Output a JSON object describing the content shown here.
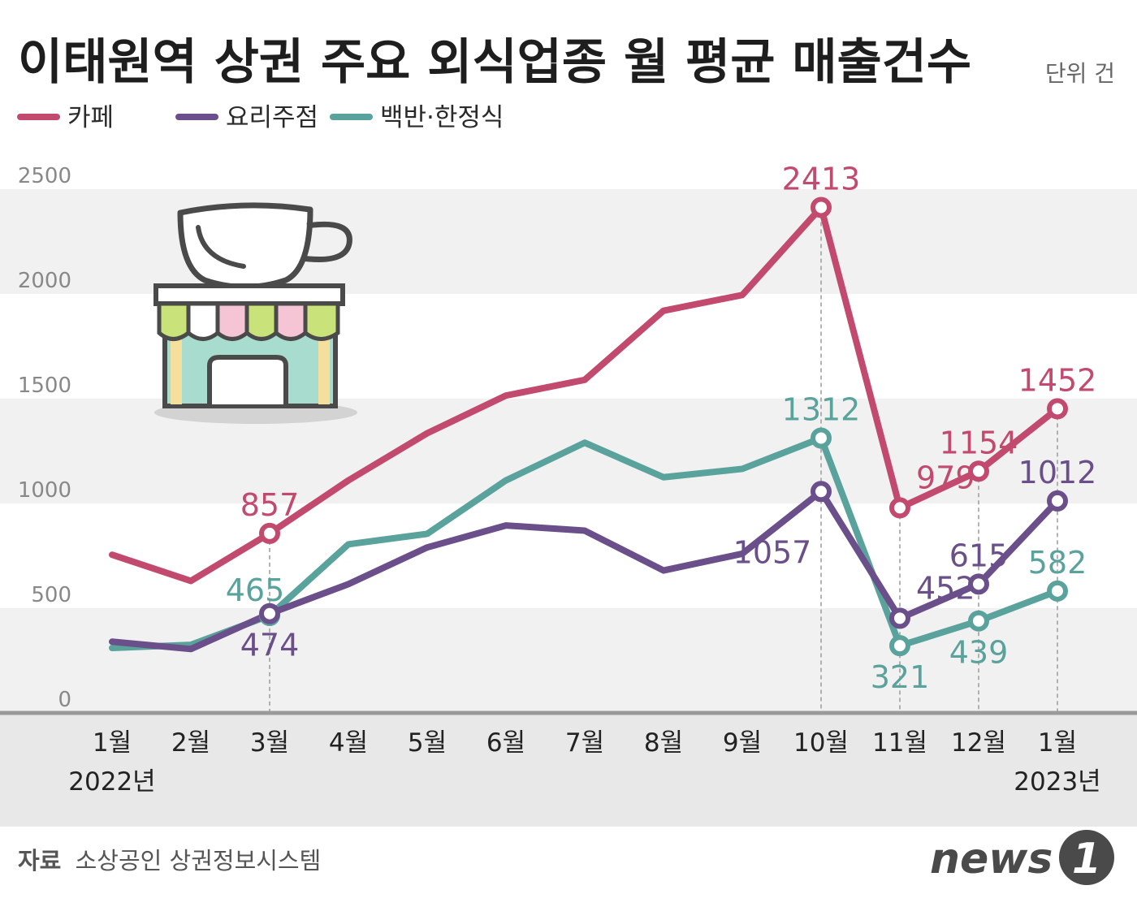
{
  "header": {
    "title": "이태원역 상권 주요 외식업종 월 평균 매출건수",
    "unit": "단위 건"
  },
  "colors": {
    "cafe": "#c24a6e",
    "restaurant": "#6a4f8a",
    "korean": "#5aa29c",
    "band": "#f1f1f1",
    "axis_band": "#e8e8e8"
  },
  "chart_data": {
    "type": "line",
    "title": "이태원역 상권 주요 외식업종 월 평균 매출건수",
    "unit": "단위 건",
    "categories": [
      "1월",
      "2월",
      "3월",
      "4월",
      "5월",
      "6월",
      "7월",
      "8월",
      "9월",
      "10월",
      "11월",
      "12월",
      "1월"
    ],
    "year_labels": [
      {
        "index": 0,
        "text": "2022년"
      },
      {
        "index": 12,
        "text": "2023년"
      }
    ],
    "yticks": [
      "0",
      "500",
      "1000",
      "1500",
      "2000",
      "2500"
    ],
    "ylim": [
      0,
      2500
    ],
    "legend": "top-left",
    "series": [
      {
        "name": "카페",
        "key": "cafe",
        "values": [
          755,
          630,
          857,
          1110,
          1335,
          1515,
          1590,
          1920,
          1995,
          2413,
          979,
          1154,
          1452
        ],
        "labels": [
          {
            "index": 2,
            "text": "857",
            "pos": "above"
          },
          {
            "index": 9,
            "text": "2413",
            "pos": "above"
          },
          {
            "index": 10,
            "text": "979",
            "pos": "above-right"
          },
          {
            "index": 11,
            "text": "1154",
            "pos": "above"
          },
          {
            "index": 12,
            "text": "1452",
            "pos": "above"
          }
        ]
      },
      {
        "name": "요리주점",
        "key": "restaurant",
        "values": [
          340,
          305,
          474,
          615,
          790,
          895,
          870,
          680,
          760,
          1057,
          452,
          615,
          1012
        ],
        "labels": [
          {
            "index": 2,
            "text": "474",
            "pos": "below"
          },
          {
            "index": 9,
            "text": "1057",
            "pos": "below-left"
          },
          {
            "index": 10,
            "text": "452",
            "pos": "above-right"
          },
          {
            "index": 11,
            "text": "615",
            "pos": "above"
          },
          {
            "index": 12,
            "text": "1012",
            "pos": "above"
          }
        ]
      },
      {
        "name": "백반·한정식",
        "key": "korean",
        "values": [
          310,
          325,
          465,
          805,
          855,
          1110,
          1290,
          1125,
          1165,
          1312,
          321,
          439,
          582
        ],
        "labels": [
          {
            "index": 2,
            "text": "465",
            "pos": "above-left"
          },
          {
            "index": 9,
            "text": "1312",
            "pos": "above"
          },
          {
            "index": 10,
            "text": "321",
            "pos": "below"
          },
          {
            "index": 11,
            "text": "439",
            "pos": "below"
          },
          {
            "index": 12,
            "text": "582",
            "pos": "above"
          }
        ]
      }
    ],
    "highlight_indices": [
      2,
      9,
      10,
      11,
      12
    ]
  },
  "footer": {
    "source_label": "자료",
    "source_text": "소상공인 상권정보시스템",
    "logo_text": "news",
    "logo_mark": "1"
  },
  "illustration": {
    "icon": "coffee-shop-icon"
  }
}
